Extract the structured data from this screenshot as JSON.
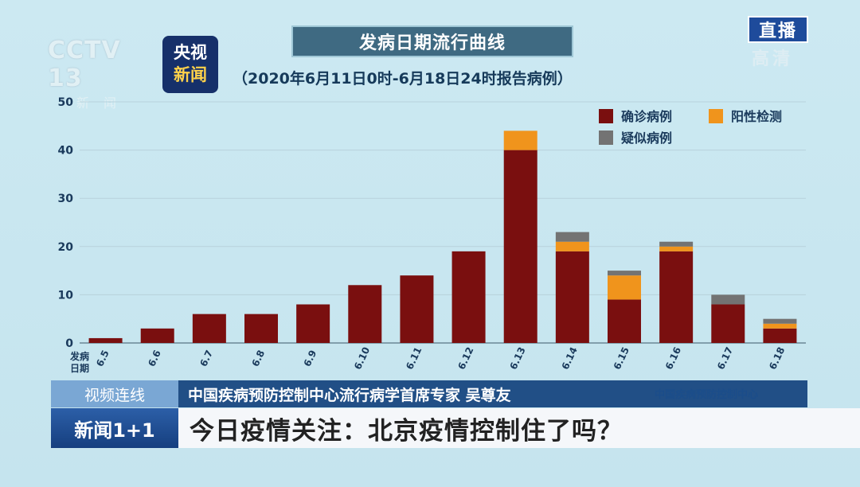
{
  "channel": {
    "cctv_logo_text": "CCTV 13",
    "cctv_logo_sub": "新闻",
    "yangshi_line1": "央视",
    "yangshi_line2": "新闻",
    "live_label": "直播",
    "hd_label": "高清"
  },
  "chart_data": {
    "type": "bar",
    "stacked": true,
    "title": "发病日期流行曲线",
    "subtitle": "（2020年6月11日0时-6月18日24时报告病例）",
    "xlabel": "发病\n日期",
    "ylabel": "",
    "ylim": [
      0,
      50
    ],
    "yticks": [
      0,
      10,
      20,
      30,
      40,
      50
    ],
    "grid": true,
    "legend_position": "top-right",
    "categories": [
      "6.5",
      "6.6",
      "6.7",
      "6.8",
      "6.9",
      "6.10",
      "6.11",
      "6.12",
      "6.13",
      "6.14",
      "6.15",
      "6.16",
      "6.17",
      "6.18"
    ],
    "series": [
      {
        "name": "确诊病例",
        "color": "#7a0f0f",
        "values": [
          1,
          3,
          6,
          6,
          8,
          12,
          14,
          19,
          40,
          19,
          9,
          19,
          8,
          3
        ]
      },
      {
        "name": "阳性检测",
        "color": "#f0941c",
        "values": [
          0,
          0,
          0,
          0,
          0,
          0,
          0,
          0,
          4,
          2,
          5,
          1,
          0,
          1
        ]
      },
      {
        "name": "疑似病例",
        "color": "#737373",
        "values": [
          0,
          0,
          0,
          0,
          0,
          0,
          0,
          0,
          0,
          2,
          1,
          1,
          2,
          1
        ]
      }
    ]
  },
  "lower_third": {
    "tag": "视频连线",
    "speaker": "中国疾病预防控制中心流行病学首席专家 吴尊友",
    "source": "中国疾病预防控制中心",
    "program": "新闻1+1",
    "headline": "今日疫情关注：北京疫情控制住了吗？"
  }
}
